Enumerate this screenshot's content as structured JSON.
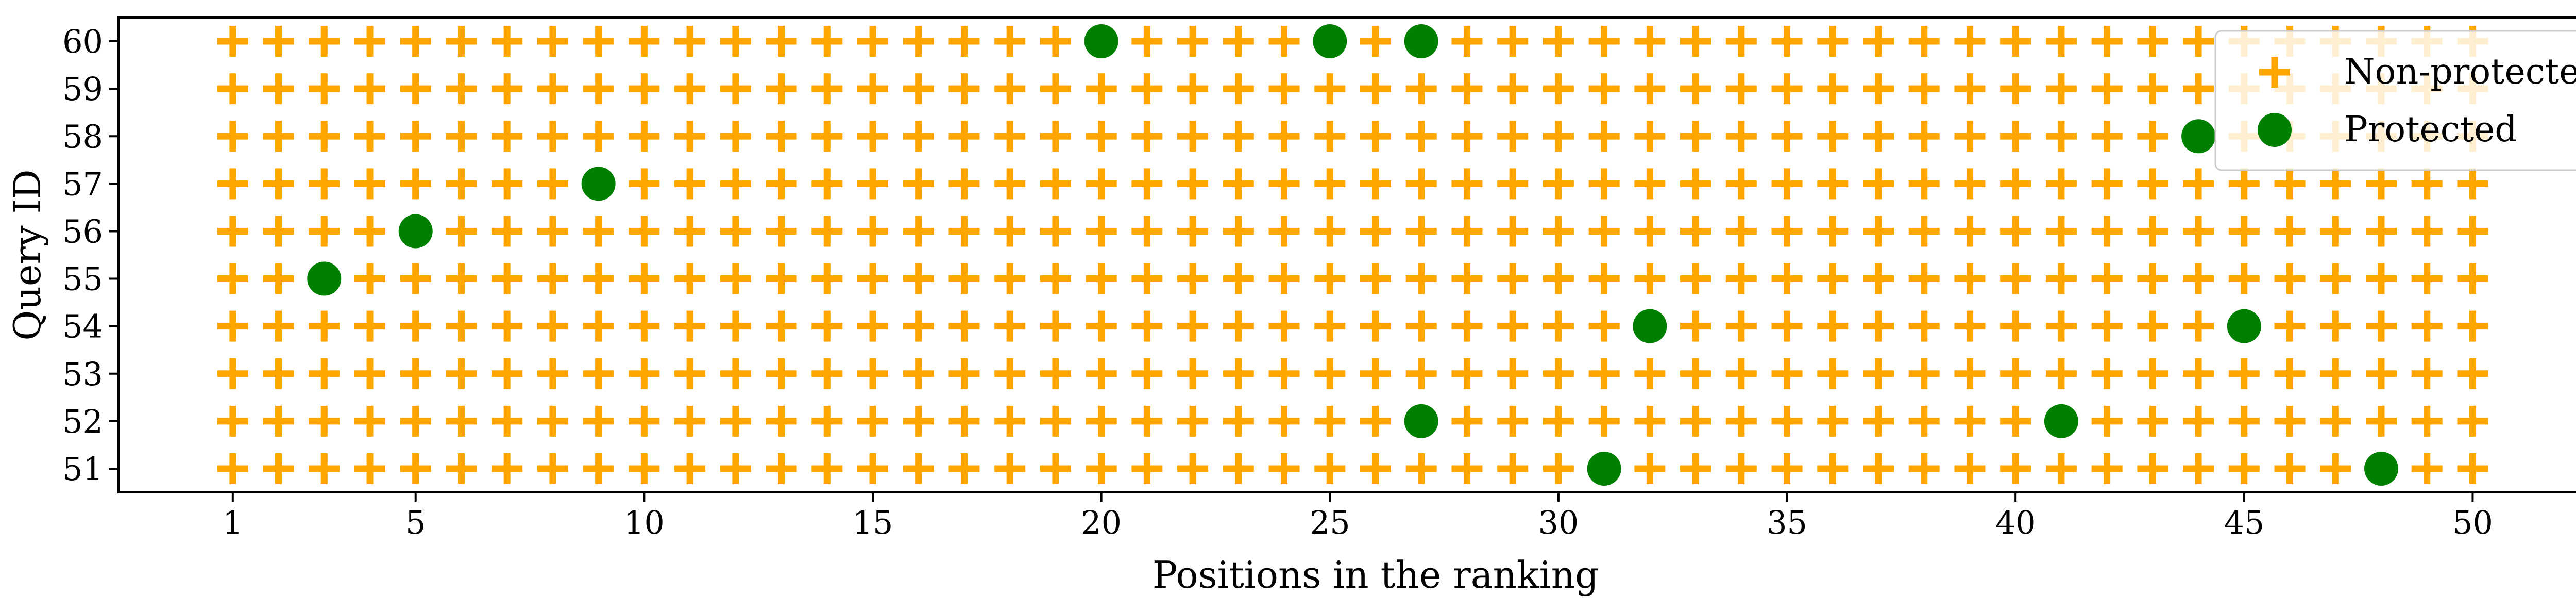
{
  "chart_data": {
    "type": "scatter",
    "xlabel": "Positions in the ranking",
    "ylabel": "Query ID",
    "xlim": [
      -1.5,
      53.5
    ],
    "ylim": [
      50.5,
      60.5
    ],
    "xticks": [
      1,
      5,
      10,
      15,
      20,
      25,
      30,
      35,
      40,
      45,
      50
    ],
    "xtick_labels": [
      "1",
      "5",
      "10",
      "15",
      "20",
      "25",
      "30",
      "35",
      "40",
      "45",
      "50"
    ],
    "yticks": [
      51,
      52,
      53,
      54,
      55,
      56,
      57,
      58,
      59,
      60
    ],
    "ytick_labels": [
      "51",
      "52",
      "53",
      "54",
      "55",
      "56",
      "57",
      "58",
      "59",
      "60"
    ],
    "legend_position": "top-right",
    "series": [
      {
        "name": "Non-protected",
        "marker": "plus",
        "color": "#FFA500",
        "x_range": [
          1,
          50
        ],
        "y_range": [
          51,
          60
        ],
        "note_fill": "every position 1-50 in each query except the protected points"
      },
      {
        "name": "Protected",
        "marker": "circle",
        "color": "#008000",
        "points": [
          {
            "x": 20,
            "y": 60
          },
          {
            "x": 25,
            "y": 60
          },
          {
            "x": 27,
            "y": 60
          },
          {
            "x": 44,
            "y": 58
          },
          {
            "x": 9,
            "y": 57
          },
          {
            "x": 5,
            "y": 56
          },
          {
            "x": 3,
            "y": 55
          },
          {
            "x": 32,
            "y": 54
          },
          {
            "x": 45,
            "y": 54
          },
          {
            "x": 27,
            "y": 52
          },
          {
            "x": 41,
            "y": 52
          },
          {
            "x": 31,
            "y": 51
          },
          {
            "x": 48,
            "y": 51
          }
        ]
      }
    ]
  }
}
